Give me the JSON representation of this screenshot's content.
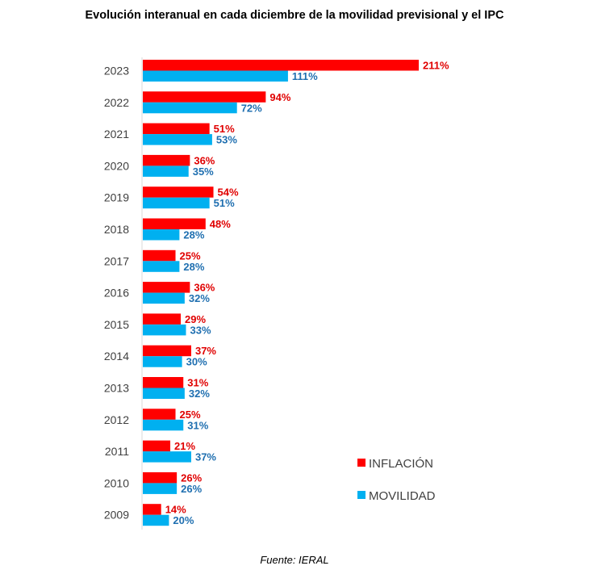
{
  "title": "Evolución interanual en cada diciembre de la movilidad previsional y el IPC",
  "source": "Fuente: IERAL",
  "colors": {
    "inflacion": "#ff0000",
    "movilidad": "#00b0f0"
  },
  "chart_data": {
    "type": "bar",
    "orientation": "horizontal",
    "title": "Evolución interanual en cada diciembre de la movilidad previsional y el IPC",
    "categories": [
      "2023",
      "2022",
      "2021",
      "2020",
      "2019",
      "2018",
      "2017",
      "2016",
      "2015",
      "2014",
      "2013",
      "2012",
      "2011",
      "2010",
      "2009"
    ],
    "series": [
      {
        "name": "INFLACIÓN",
        "color": "#ff0000",
        "values": [
          211,
          94,
          51,
          36,
          54,
          48,
          25,
          36,
          29,
          37,
          31,
          25,
          21,
          26,
          14
        ],
        "labels": [
          "211%",
          "94%",
          "51%",
          "36%",
          "54%",
          "48%",
          "25%",
          "36%",
          "29%",
          "37%",
          "31%",
          "25%",
          "21%",
          "26%",
          "14%"
        ]
      },
      {
        "name": "MOVILIDAD",
        "color": "#00b0f0",
        "values": [
          111,
          72,
          53,
          35,
          51,
          28,
          28,
          32,
          33,
          30,
          32,
          31,
          37,
          26,
          20
        ],
        "labels": [
          "111%",
          "72%",
          "53%",
          "35%",
          "51%",
          "28%",
          "28%",
          "32%",
          "33%",
          "30%",
          "32%",
          "31%",
          "37%",
          "26%",
          "20%"
        ]
      }
    ],
    "legend_position": "bottom-right",
    "grid": false
  }
}
